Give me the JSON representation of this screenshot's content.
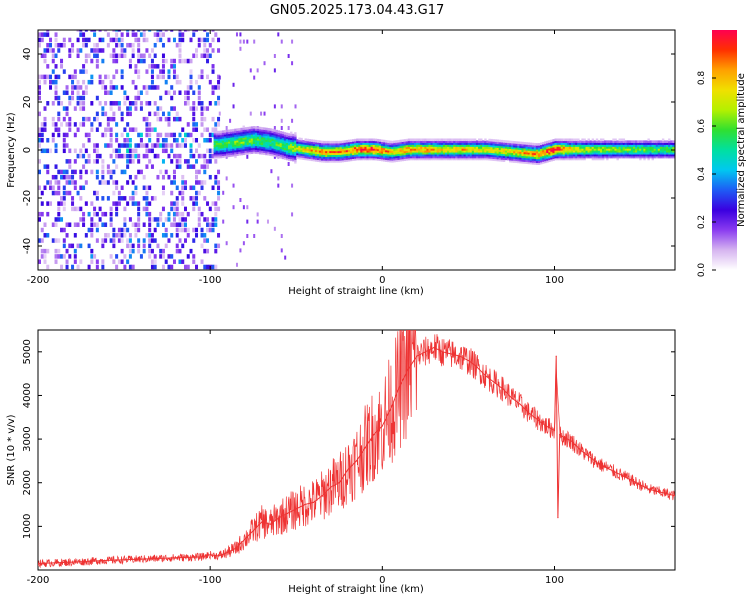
{
  "title": "GN05.2025.173.04.43.G17",
  "chart_data": [
    {
      "type": "heatmap",
      "xlabel": "Height of straight line (km)",
      "ylabel": "Frequency (Hz)",
      "xlim": [
        -200,
        170
      ],
      "ylim": [
        -50,
        50
      ],
      "x_ticks": [
        -200,
        -100,
        0,
        100
      ],
      "y_ticks": [
        -40,
        -20,
        0,
        20,
        40
      ],
      "colorbar": {
        "label": "Normalized spectral amplitude",
        "range": [
          0,
          1
        ],
        "ticks": [
          "0.0",
          "0.2",
          "0.4",
          "0.6",
          "0.8"
        ],
        "colors": [
          "#ffffff",
          "#d6b4f0",
          "#8a3cf0",
          "#3a00e0",
          "#1e5cf5",
          "#00c8f0",
          "#00e0a0",
          "#30e030",
          "#b4f000",
          "#f0e000",
          "#ffa000",
          "#ff3000",
          "#ff0050"
        ]
      },
      "noise_region_x": [
        -200,
        -95
      ],
      "signal_track": [
        {
          "x": -95,
          "freq": 2,
          "amp": 0.55
        },
        {
          "x": -85,
          "freq": 3,
          "amp": 0.6
        },
        {
          "x": -75,
          "freq": 4,
          "amp": 0.6
        },
        {
          "x": -65,
          "freq": 3,
          "amp": 0.55
        },
        {
          "x": -55,
          "freq": 1,
          "amp": 0.6
        },
        {
          "x": -45,
          "freq": 0,
          "amp": 0.75
        },
        {
          "x": -35,
          "freq": -1,
          "amp": 0.85
        },
        {
          "x": -25,
          "freq": -1,
          "amp": 0.85
        },
        {
          "x": -15,
          "freq": 0,
          "amp": 0.92
        },
        {
          "x": -5,
          "freq": 0,
          "amp": 0.98
        },
        {
          "x": 5,
          "freq": -1,
          "amp": 0.75
        },
        {
          "x": 15,
          "freq": 0,
          "amp": 0.85
        },
        {
          "x": 30,
          "freq": 0,
          "amp": 0.8
        },
        {
          "x": 45,
          "freq": 0,
          "amp": 0.78
        },
        {
          "x": 60,
          "freq": 0,
          "amp": 0.72
        },
        {
          "x": 75,
          "freq": -1,
          "amp": 0.75
        },
        {
          "x": 90,
          "freq": -2,
          "amp": 0.85
        },
        {
          "x": 100,
          "freq": 0,
          "amp": 0.95
        },
        {
          "x": 115,
          "freq": 0,
          "amp": 0.7
        },
        {
          "x": 130,
          "freq": 0,
          "amp": 0.65
        },
        {
          "x": 145,
          "freq": 0,
          "amp": 0.62
        },
        {
          "x": 160,
          "freq": 0,
          "amp": 0.6
        },
        {
          "x": 170,
          "freq": 0,
          "amp": 0.6
        }
      ]
    },
    {
      "type": "line",
      "xlabel": "Height of straight line (km)",
      "ylabel": "SNR (10 * v/v)",
      "xlim": [
        -200,
        170
      ],
      "ylim": [
        0,
        5500
      ],
      "x_ticks": [
        -200,
        -100,
        0,
        100
      ],
      "y_ticks": [
        1000,
        2000,
        3000,
        4000,
        5000
      ],
      "color": "#ee3333",
      "x": [
        -200,
        -180,
        -160,
        -140,
        -120,
        -105,
        -100,
        -95,
        -90,
        -85,
        -80,
        -75,
        -70,
        -65,
        -60,
        -55,
        -50,
        -45,
        -40,
        -35,
        -30,
        -25,
        -20,
        -15,
        -10,
        -5,
        0,
        5,
        10,
        15,
        20,
        25,
        30,
        35,
        40,
        45,
        50,
        55,
        60,
        65,
        70,
        75,
        80,
        85,
        90,
        95,
        100,
        101,
        102,
        103,
        105,
        110,
        115,
        120,
        125,
        130,
        135,
        140,
        145,
        150,
        155,
        160,
        165,
        170
      ],
      "y": [
        150,
        180,
        220,
        250,
        280,
        300,
        350,
        320,
        400,
        500,
        700,
        900,
        1100,
        1050,
        1200,
        1300,
        1400,
        1500,
        1550,
        1700,
        1900,
        2000,
        2300,
        2500,
        2800,
        3100,
        3300,
        3700,
        4200,
        4600,
        4900,
        5000,
        5100,
        5000,
        4950,
        4900,
        4800,
        4650,
        4450,
        4300,
        4150,
        3950,
        3800,
        3600,
        3450,
        3300,
        3200,
        4900,
        1200,
        3100,
        3050,
        2950,
        2750,
        2600,
        2450,
        2350,
        2250,
        2150,
        2050,
        1950,
        1850,
        1800,
        1750,
        1700
      ]
    }
  ]
}
